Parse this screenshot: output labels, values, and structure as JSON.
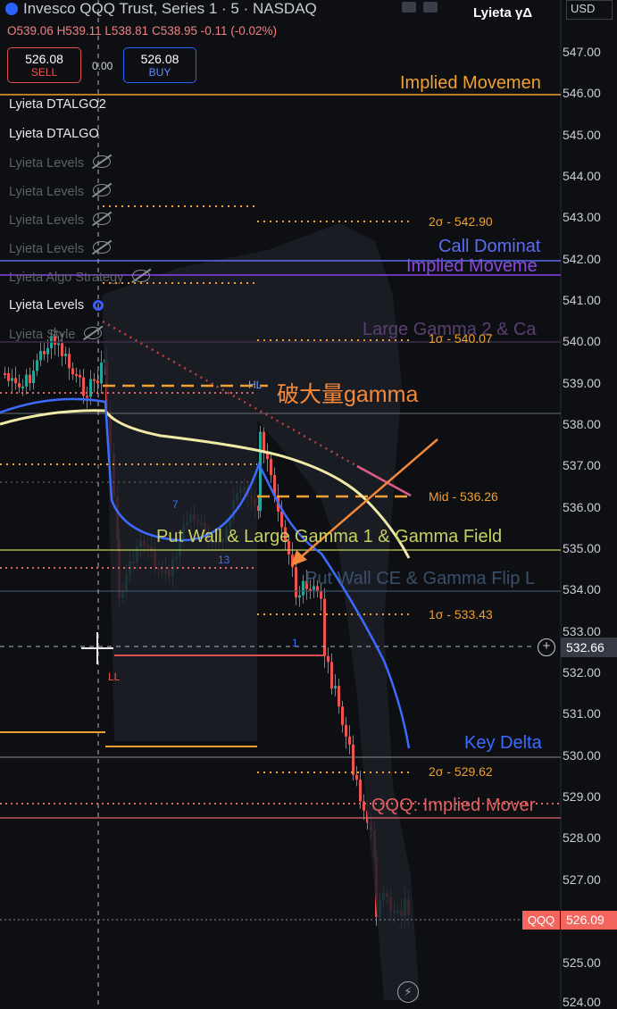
{
  "header": {
    "symbol_title": "Invesco QQQ Trust, Series 1 · 5 · NASDAQ",
    "ohlc": {
      "o": "O539.06",
      "h": "H539.11",
      "l": "L538.81",
      "c": "C538.95",
      "change": "-0.11 (-0.02%)"
    },
    "brand": "Lyieta γΔ",
    "currency": "USD"
  },
  "trade": {
    "sell_price": "526.08",
    "sell_label": "SELL",
    "spread": "0.00",
    "buy_price": "526.08",
    "buy_label": "BUY"
  },
  "legend": [
    {
      "label": "Lyieta DTALGO2",
      "state": "active",
      "icon": ""
    },
    {
      "label": "Lyieta DTALGO",
      "state": "active",
      "icon": ""
    },
    {
      "label": "Lyieta Levels",
      "state": "hidden",
      "icon": "eye-off-icon"
    },
    {
      "label": "Lyieta Levels",
      "state": "hidden",
      "icon": "eye-off-icon"
    },
    {
      "label": "Lyieta Levels",
      "state": "hidden",
      "icon": "eye-off-icon"
    },
    {
      "label": "Lyieta Levels",
      "state": "hidden",
      "icon": "eye-off-icon"
    },
    {
      "label": "Lyieta Algo Strategy",
      "state": "hidden",
      "icon": "eye-off-icon"
    },
    {
      "label": "Lyieta Levels",
      "state": "active",
      "icon": "gear-icon"
    },
    {
      "label": "Lyieta Style",
      "state": "hidden",
      "icon": "eye-off-icon"
    }
  ],
  "price_axis": {
    "ticks": [
      "547.00",
      "546.00",
      "545.00",
      "544.00",
      "543.00",
      "542.00",
      "541.00",
      "540.00",
      "539.00",
      "538.00",
      "537.00",
      "536.00",
      "535.00",
      "534.00",
      "533.00",
      "532.00",
      "531.00",
      "530.00",
      "529.00",
      "528.00",
      "527.00",
      "526.00",
      "525.00",
      "524.00"
    ],
    "crosshair_price": "532.66",
    "last_price_label": "QQQ",
    "last_price": "526.09"
  },
  "levels": {
    "implied_movement_top": "Implied Movemen",
    "sigma2_up": "2σ - 542.90",
    "call_dominate": "Call Dominat",
    "implied_movement_2": "Implied Moveme",
    "large_gamma_2": "Large Gamma 2 & Ca",
    "sigma1_up": "1σ - 540.07",
    "mid": "Mid - 536.26",
    "put_wall": "Put Wall & Large Gamma 1 & Gamma Field",
    "put_wall_ce": "Put Wall CE & Gamma Flip L",
    "sigma1_down": "1σ - 533.43",
    "key_delta": "Key Delta",
    "sigma2_down": "2σ - 529.62",
    "qqq_implied": "QQQ: Implied Mover"
  },
  "markers": {
    "hl": "HL",
    "ll": "LL",
    "n7": "7",
    "n13": "13",
    "n1": "1"
  },
  "annotation": {
    "text": "破大量gamma",
    "color": "#f5893a"
  },
  "colors": {
    "bg": "#0e0f13",
    "up": "#26a69a",
    "down": "#ef5350",
    "orange": "#f0a030",
    "blue": "#3d6bff",
    "purple": "#8844ee"
  }
}
